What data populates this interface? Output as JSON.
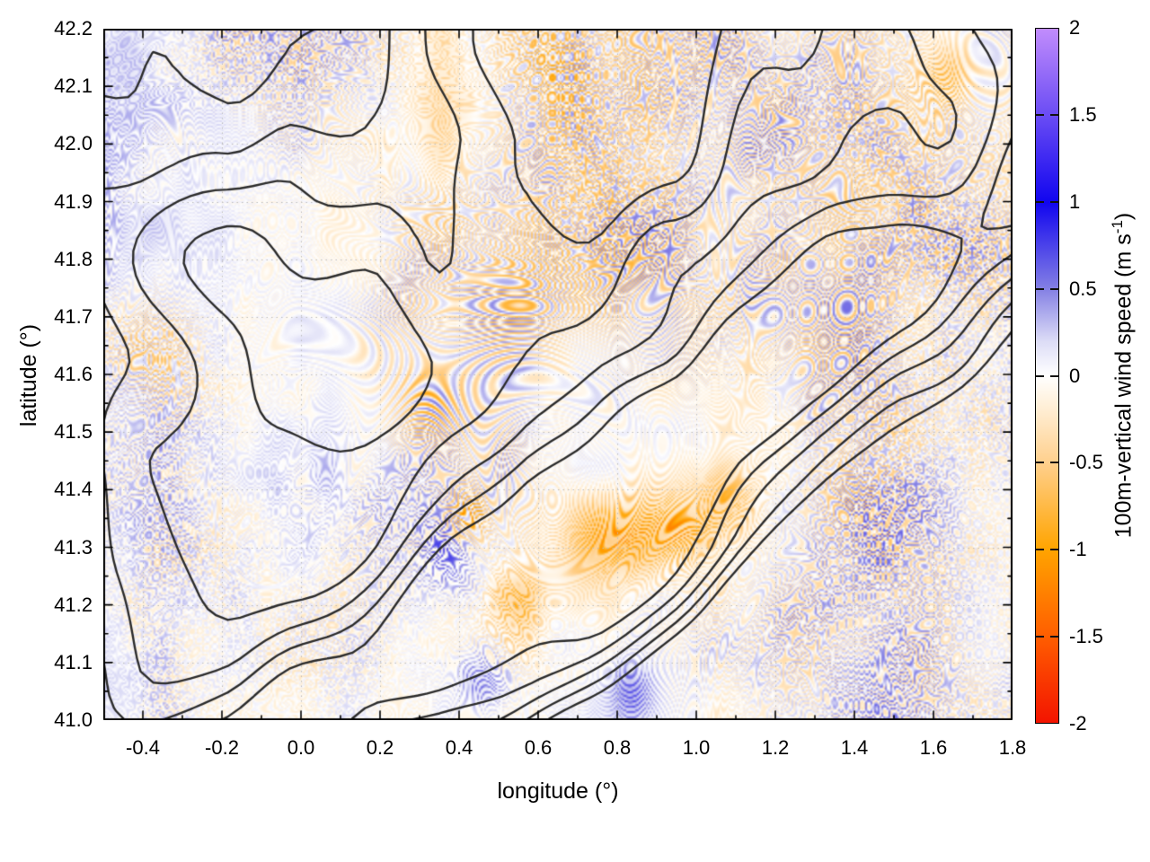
{
  "figure": {
    "background": "#ffffff"
  },
  "chart_data": {
    "type": "heatmap",
    "title": "",
    "xlabel": "longitude (°)",
    "ylabel": "latitude (°)",
    "xlim": [
      -0.5,
      1.8
    ],
    "ylim": [
      41.0,
      42.2
    ],
    "x_tick_values": [
      -0.4,
      -0.2,
      0.0,
      0.2,
      0.4,
      0.6,
      0.8,
      1.0,
      1.2,
      1.4,
      1.6,
      1.8
    ],
    "x_tick_labels": [
      "-0.4",
      "-0.2",
      "0.0",
      "0.2",
      "0.4",
      "0.6",
      "0.8",
      "1.0",
      "1.2",
      "1.4",
      "1.6",
      "1.8"
    ],
    "x_minor_step": 0.1,
    "y_tick_values": [
      41.0,
      41.1,
      41.2,
      41.3,
      41.4,
      41.5,
      41.6,
      41.7,
      41.8,
      41.9,
      42.0,
      42.1,
      42.2
    ],
    "y_tick_labels": [
      "41.0",
      "41.1",
      "41.2",
      "41.3",
      "41.4",
      "41.5",
      "41.6",
      "41.7",
      "41.8",
      "41.9",
      "42.0",
      "42.1",
      "42.2"
    ],
    "y_minor_step": 0.05,
    "grid": {
      "line_style": "dotted",
      "color": "#bcbcbc",
      "on_major_ticks": true
    },
    "axis_color": "#000000",
    "colorbar": {
      "label_before": "100m-vertical wind speed (m s",
      "label_sup": "-1",
      "label_after": ")",
      "min": -2,
      "max": 2,
      "tick_values": [
        2,
        1.5,
        1,
        0.5,
        0,
        -0.5,
        -1,
        -1.5,
        -2
      ],
      "tick_labels": [
        "2",
        "1.5",
        "1",
        "0.5",
        "0",
        "-0.5",
        "-1",
        "-1.5",
        "-2"
      ],
      "palette_stops": [
        {
          "v": -2.0,
          "c": "#f31400"
        },
        {
          "v": -1.5,
          "c": "#ff5e00"
        },
        {
          "v": -1.0,
          "c": "#ffa400"
        },
        {
          "v": -0.5,
          "c": "#ffd08d"
        },
        {
          "v": -0.2,
          "c": "#ffedd2"
        },
        {
          "v": 0.0,
          "c": "#ffffff"
        },
        {
          "v": 0.2,
          "c": "#dcdcf6"
        },
        {
          "v": 0.5,
          "c": "#8480e4"
        },
        {
          "v": 1.0,
          "c": "#1105ef"
        },
        {
          "v": 1.5,
          "c": "#6a4cf4"
        },
        {
          "v": 2.0,
          "c": "#c18cfc"
        }
      ]
    },
    "contour_overlay": {
      "description": "black terrain-elevation contour polylines drawn over the wind field",
      "color": "#2b2b2b",
      "line_width": 2.4,
      "levels": [
        0.4,
        0.48,
        0.56,
        0.64,
        0.72
      ]
    },
    "field": {
      "description": "100 m vertical wind speed (m/s) map: quasi-periodic mountain-wave streaks of alternating updraft (blue, positive) and downdraft (orange/red, negative) on a near-white background; strongest wave activity over the mountains between lon 0.3-1.1 and lat 41.0-41.4; mostly calm pale plain in the south-east corner.",
      "value_range": [
        -2,
        2
      ],
      "wavelength_deg": 0.028,
      "seed": 1337,
      "notable_features": [
        {
          "lon": 0.37,
          "lat": 41.29,
          "sx": 0.05,
          "sy": 0.05,
          "amp": 1.2,
          "bias": 0.5,
          "note": "strong wave train, blue peaks near +1.5 m/s"
        },
        {
          "lon": 0.46,
          "lat": 41.07,
          "sx": 0.05,
          "sy": 0.04,
          "amp": 1.0,
          "bias": 0.45,
          "note": "strong blue streaks"
        },
        {
          "lon": 0.52,
          "lat": 41.14,
          "sx": 0.06,
          "sy": 0.05,
          "amp": 1.2,
          "bias": -0.2,
          "note": "mixed intense waves"
        },
        {
          "lon": 0.78,
          "lat": 41.31,
          "sx": 0.09,
          "sy": 0.05,
          "amp": 1.0,
          "bias": -0.8,
          "note": "strong downdraft band near -1.8 m/s"
        },
        {
          "lon": 0.97,
          "lat": 41.34,
          "sx": 0.07,
          "sy": 0.045,
          "amp": 0.8,
          "bias": -0.6,
          "note": "orange-red streaks"
        },
        {
          "lon": 1.08,
          "lat": 41.38,
          "sx": 0.05,
          "sy": 0.04,
          "amp": 0.6,
          "bias": -0.5,
          "note": "orange streaks"
        },
        {
          "lon": 0.55,
          "lat": 41.21,
          "sx": 0.05,
          "sy": 0.04,
          "amp": 0.9,
          "bias": -0.55,
          "note": "orange streaks"
        },
        {
          "lon": 0.42,
          "lat": 41.35,
          "sx": 0.04,
          "sy": 0.03,
          "amp": 0.7,
          "bias": -0.6,
          "note": "orange-red kink"
        },
        {
          "lon": 0.84,
          "lat": 41.04,
          "sx": 0.04,
          "sy": 0.04,
          "amp": 0.7,
          "bias": 0.5,
          "note": "blue-violet spot"
        },
        {
          "lon": 0.36,
          "lat": 42.05,
          "sx": 0.05,
          "sy": 0.17,
          "amp": 0.5,
          "bias": -0.3,
          "note": "meridional orange band at top"
        },
        {
          "lon": 1.64,
          "lat": 42.12,
          "sx": 0.05,
          "sy": 0.04,
          "amp": 0.45,
          "bias": -0.5,
          "note": "orange patch top-right"
        },
        {
          "lon": -0.36,
          "lat": 41.64,
          "sx": 0.08,
          "sy": 0.07,
          "amp": 0.6,
          "bias": -0.3,
          "note": "diagonal orange streaks west"
        },
        {
          "lon": 0.3,
          "lat": 41.56,
          "sx": 0.06,
          "sy": 0.05,
          "amp": 0.6,
          "bias": -0.25,
          "note": "orange streaks"
        },
        {
          "lon": 1.42,
          "lat": 41.47,
          "sx": 0.1,
          "sy": 0.08,
          "amp": 0.4,
          "bias": -0.15,
          "note": "faint waves east"
        },
        {
          "lon": 0.62,
          "lat": 41.77,
          "sx": 0.12,
          "sy": 0.1,
          "amp": 0.35,
          "bias": -0.15,
          "note": "faint orange wash centre"
        },
        {
          "lon": 0.05,
          "lat": 41.38,
          "sx": 0.1,
          "sy": 0.08,
          "amp": 0.5,
          "bias": 0.2,
          "note": "pale blue patch"
        },
        {
          "lon": 0.6,
          "lat": 42.15,
          "sx": 0.08,
          "sy": 0.06,
          "amp": 0.5,
          "bias": -0.25,
          "note": "orange streaks at top edge"
        }
      ]
    }
  }
}
